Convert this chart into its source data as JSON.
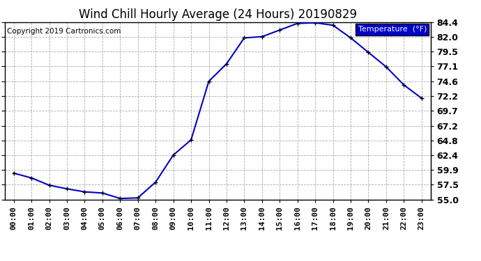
{
  "title": "Wind Chill Hourly Average (24 Hours) 20190829",
  "copyright": "Copyright 2019 Cartronics.com",
  "legend_label": "Temperature  (°F)",
  "hours": [
    "00:00",
    "01:00",
    "02:00",
    "03:00",
    "04:00",
    "05:00",
    "06:00",
    "07:00",
    "08:00",
    "09:00",
    "10:00",
    "11:00",
    "12:00",
    "13:00",
    "14:00",
    "15:00",
    "16:00",
    "17:00",
    "18:00",
    "19:00",
    "20:00",
    "21:00",
    "22:00",
    "23:00"
  ],
  "values": [
    59.4,
    58.6,
    57.4,
    56.8,
    56.3,
    56.1,
    55.2,
    55.3,
    57.9,
    62.4,
    64.9,
    74.6,
    77.5,
    81.8,
    82.0,
    83.1,
    84.2,
    84.3,
    83.9,
    81.8,
    79.4,
    77.0,
    74.0,
    71.8
  ],
  "ylim_min": 55.0,
  "ylim_max": 84.4,
  "yticks": [
    55.0,
    57.5,
    59.9,
    62.4,
    64.8,
    67.2,
    69.7,
    72.2,
    74.6,
    77.1,
    79.5,
    82.0,
    84.4
  ],
  "line_color": "#0000cc",
  "marker_color": "#000000",
  "grid_color": "#aaaaaa",
  "background_color": "#ffffff",
  "title_fontsize": 12,
  "copyright_fontsize": 7.5,
  "tick_fontsize": 8,
  "ytick_fontsize": 9,
  "legend_bg_color": "#0000cc",
  "legend_text_color": "#ffffff"
}
